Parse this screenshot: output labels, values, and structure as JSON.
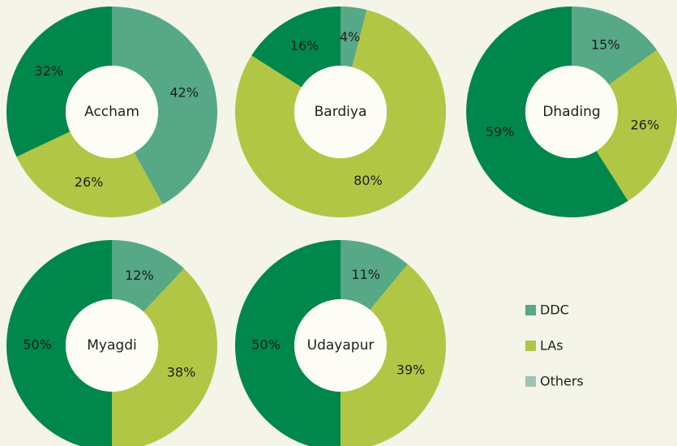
{
  "chart_data": {
    "type": "donut",
    "categories": [
      "DDC",
      "LAs",
      "Others"
    ],
    "colors": [
      "#56a886",
      "#b2c645",
      "#00874b"
    ],
    "legend_colors": [
      "#56a886",
      "#b2c645",
      "#9fc2b4"
    ],
    "charts": [
      {
        "title": "Accham",
        "values": [
          42,
          26,
          32
        ],
        "value_labels": [
          "42%",
          "26%",
          "32%"
        ]
      },
      {
        "title": "Bardiya",
        "values": [
          4,
          80,
          16
        ],
        "value_labels": [
          "4%",
          "80%",
          "16%"
        ]
      },
      {
        "title": "Dhading",
        "values": [
          15,
          26,
          59
        ],
        "value_labels": [
          "15%",
          "26%",
          "59%"
        ]
      },
      {
        "title": "Myagdi",
        "values": [
          12,
          38,
          50
        ],
        "value_labels": [
          "12%",
          "38%",
          "50%"
        ]
      },
      {
        "title": "Udayapur",
        "values": [
          11,
          39,
          50
        ],
        "value_labels": [
          "11%",
          "39%",
          "50%"
        ]
      }
    ]
  }
}
